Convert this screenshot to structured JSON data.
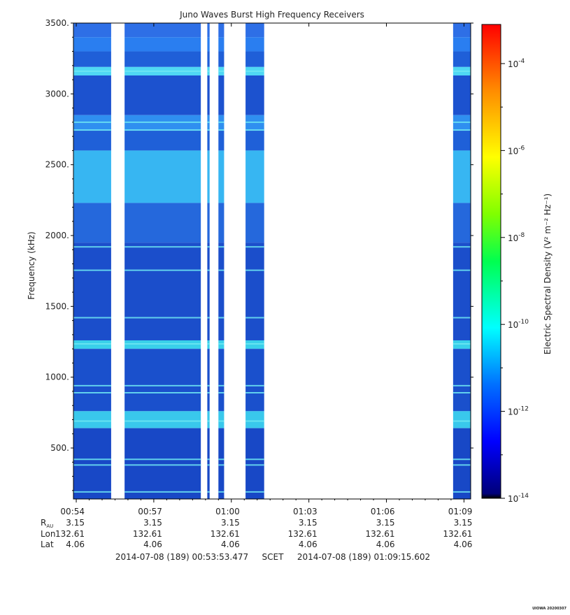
{
  "chart_data": {
    "type": "heatmap",
    "title": "Juno Waves Burst High Frequency Receivers",
    "ylabel": "Frequency (kHz)",
    "ylim": [
      140,
      3500
    ],
    "yticks": [
      {
        "value": 500,
        "label": "500."
      },
      {
        "value": 1000,
        "label": "1000."
      },
      {
        "value": 1500,
        "label": "1500."
      },
      {
        "value": 2000,
        "label": "2000."
      },
      {
        "value": 2500,
        "label": "2500."
      },
      {
        "value": 3000,
        "label": "3000."
      },
      {
        "value": 3500,
        "label": "3500."
      }
    ],
    "x_range_minutes": [
      53.891,
      69.26
    ],
    "xticks": [
      {
        "minute": 54,
        "label": "00:54",
        "r": "3.15",
        "lon": "132.61",
        "lat": "4.06"
      },
      {
        "minute": 57,
        "label": "00:57",
        "r": "3.15",
        "lon": "132.61",
        "lat": "4.06"
      },
      {
        "minute": 60,
        "label": "01:00",
        "r": "3.15",
        "lon": "132.61",
        "lat": "4.06"
      },
      {
        "minute": 63,
        "label": "01:03",
        "r": "3.15",
        "lon": "132.61",
        "lat": "4.06"
      },
      {
        "minute": 66,
        "label": "01:06",
        "r": "3.15",
        "lon": "132.61",
        "lat": "4.06"
      },
      {
        "minute": 69,
        "label": "01:09",
        "r": "3.15",
        "lon": "132.61",
        "lat": "4.06"
      }
    ],
    "row_labels": {
      "r": "R",
      "r_sub": "AU",
      "lon": "Lon",
      "lat": "Lat"
    },
    "time_start": "2014-07-08 (189) 00:53:53.477",
    "time_mid": "SCET",
    "time_end": "2014-07-08 (189) 01:09:15.602",
    "data_segments_minutes": [
      [
        53.891,
        55.35
      ],
      [
        55.87,
        58.82
      ],
      [
        59.07,
        59.16
      ],
      [
        59.5,
        59.72
      ],
      [
        60.55,
        61.27
      ],
      [
        68.58,
        69.26
      ]
    ],
    "bright_lines_khz": [
      3160,
      2800,
      2745,
      1920,
      1755,
      1420,
      1235,
      940,
      890,
      690,
      420,
      380,
      190
    ],
    "colorbar": {
      "label": "Electric Spectral Density (V² m⁻² Hz⁻¹)",
      "range_exp": [
        -14,
        -3.1
      ],
      "ticks": [
        {
          "exp": -4,
          "label": "10",
          "sup": "-4"
        },
        {
          "exp": -6,
          "label": "10",
          "sup": "-6"
        },
        {
          "exp": -8,
          "label": "10",
          "sup": "-8"
        },
        {
          "exp": -10,
          "label": "10",
          "sup": "-10"
        },
        {
          "exp": -12,
          "label": "10",
          "sup": "-12"
        },
        {
          "exp": -14,
          "label": "10",
          "sup": "-14"
        }
      ]
    }
  },
  "footer": {
    "stamp": "UIOWA 20200307"
  }
}
